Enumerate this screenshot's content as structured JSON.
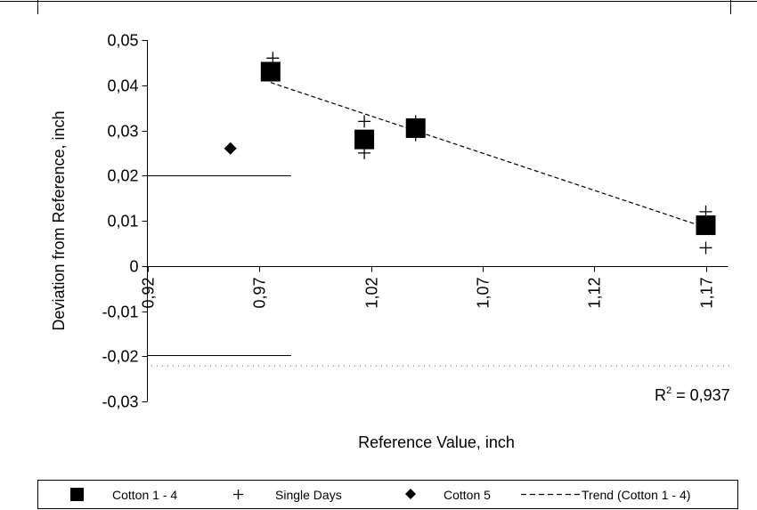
{
  "chart_data": {
    "type": "scatter",
    "xlabel": "Reference Value, inch",
    "ylabel": "Deviation from Reference, inch",
    "xlim": [
      0.92,
      1.18
    ],
    "ylim": [
      -0.03,
      0.05
    ],
    "x_ticks": [
      0.92,
      0.97,
      1.02,
      1.07,
      1.12,
      1.17
    ],
    "x_tick_labels": [
      "0,92",
      "0,97",
      "1,02",
      "1,07",
      "1,12",
      "1,17"
    ],
    "y_ticks": [
      -0.03,
      -0.02,
      -0.01,
      0,
      0.01,
      0.02,
      0.03,
      0.04,
      0.05
    ],
    "y_tick_labels": [
      "-0,03",
      "-0,02",
      "-0,01",
      "0",
      "0,01",
      "0,02",
      "0,03",
      "0,04",
      "0,05"
    ],
    "grid": false,
    "legend_position": "bottom",
    "series": [
      {
        "name": "Cotton 1 - 4",
        "marker": "square",
        "color": "#000000",
        "points": [
          [
            0.975,
            0.043
          ],
          [
            1.017,
            0.028
          ],
          [
            1.04,
            0.0305
          ],
          [
            1.17,
            0.009
          ]
        ]
      },
      {
        "name": "Single Days",
        "marker": "plus",
        "color": "#000000",
        "points": [
          [
            0.976,
            0.046
          ],
          [
            0.975,
            0.0425
          ],
          [
            1.017,
            0.032
          ],
          [
            1.017,
            0.025
          ],
          [
            1.04,
            0.032
          ],
          [
            1.04,
            0.029
          ],
          [
            1.17,
            0.012
          ],
          [
            1.17,
            0.004
          ]
        ]
      },
      {
        "name": "Cotton 5",
        "marker": "diamond",
        "color": "#000000",
        "points": [
          [
            0.957,
            0.026
          ]
        ]
      },
      {
        "name": "Trend (Cotton 1 - 4)",
        "marker": "dashed-line",
        "color": "#000000",
        "points": [
          [
            0.975,
            0.0406
          ],
          [
            1.17,
            0.0085
          ]
        ]
      }
    ],
    "annotations": {
      "r2_prefix": "R",
      "r2_sup": "2",
      "r2_value": " = 0,937"
    }
  }
}
